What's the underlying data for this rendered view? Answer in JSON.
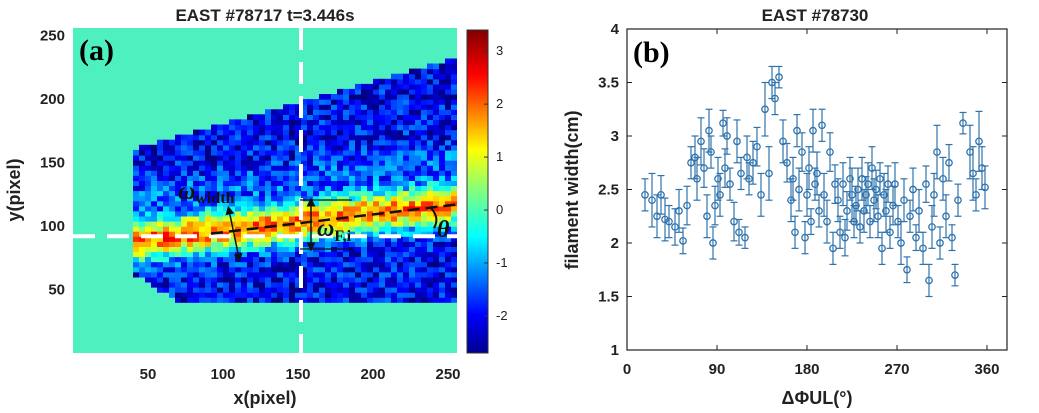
{
  "chart_data": [
    {
      "type": "heatmap",
      "title": "EAST #78717 t=3.446s",
      "panel_label": "(a)",
      "xlabel": "x(pixel)",
      "ylabel": "y(pixel)",
      "xlim": [
        0,
        256
      ],
      "ylim": [
        0,
        256
      ],
      "x_ticks": [
        "50",
        "100",
        "150",
        "200",
        "250"
      ],
      "y_ticks": [
        "50",
        "100",
        "150",
        "200",
        "250"
      ],
      "colorbar": {
        "range": [
          -2.7,
          3.4
        ],
        "ticks": [
          "3",
          "2",
          "1",
          "0",
          "-1",
          "-2"
        ],
        "colormap": "jet"
      },
      "background_color": "#4ef0c0",
      "crosshair": {
        "x": 152,
        "y": 92
      },
      "filament_tilt_line": {
        "x0": 92,
        "y0": 94,
        "x1": 256,
        "y1": 117
      },
      "annotations": {
        "width_symbol": "ω",
        "width_subscript": "width",
        "fi_symbol": "ω",
        "fi_subscript": "F,i",
        "angle_symbol": "θ"
      }
    },
    {
      "type": "scatter",
      "title": "EAST #78730",
      "panel_label": "(b)",
      "xlabel": "ΔΦUL(°)",
      "ylabel": "filament width(cm)",
      "xlim": [
        0,
        380
      ],
      "ylim": [
        1,
        4
      ],
      "x_ticks": [
        "0",
        "90",
        "180",
        "270",
        "360"
      ],
      "y_ticks": [
        "1",
        "1.5",
        "2",
        "2.5",
        "3",
        "3.5",
        "4"
      ],
      "marker": "open circle with error bars",
      "color": "#2f73ad",
      "points": [
        [
          18,
          2.45,
          0.15
        ],
        [
          25,
          2.4,
          0.25
        ],
        [
          30,
          2.25,
          0.2
        ],
        [
          34,
          2.45,
          0.18
        ],
        [
          38,
          2.22,
          0.2
        ],
        [
          42,
          2.2,
          0.15
        ],
        [
          48,
          2.15,
          0.17
        ],
        [
          52,
          2.3,
          0.2
        ],
        [
          56,
          2.02,
          0.12
        ],
        [
          60,
          2.35,
          0.18
        ],
        [
          64,
          2.75,
          0.15
        ],
        [
          68,
          2.8,
          0.2
        ],
        [
          70,
          2.6,
          0.2
        ],
        [
          74,
          2.95,
          0.22
        ],
        [
          77,
          2.7,
          0.18
        ],
        [
          80,
          2.25,
          0.2
        ],
        [
          82,
          3.05,
          0.2
        ],
        [
          84,
          2.85,
          0.15
        ],
        [
          86,
          2.0,
          0.15
        ],
        [
          88,
          2.35,
          0.18
        ],
        [
          91,
          2.6,
          0.2
        ],
        [
          93,
          2.45,
          0.2
        ],
        [
          96,
          3.12,
          0.12
        ],
        [
          98,
          2.7,
          0.18
        ],
        [
          100,
          3.0,
          0.17
        ],
        [
          103,
          2.55,
          0.15
        ],
        [
          107,
          2.2,
          0.18
        ],
        [
          110,
          2.95,
          0.2
        ],
        [
          112,
          2.1,
          0.12
        ],
        [
          114,
          2.65,
          0.15
        ],
        [
          118,
          2.05,
          0.1
        ],
        [
          120,
          2.8,
          0.2
        ],
        [
          122,
          2.6,
          0.15
        ],
        [
          126,
          2.75,
          0.2
        ],
        [
          130,
          2.9,
          0.18
        ],
        [
          134,
          2.45,
          0.2
        ],
        [
          138,
          3.25,
          0.25
        ],
        [
          142,
          2.65,
          0.25
        ],
        [
          145,
          3.5,
          0.15
        ],
        [
          148,
          3.35,
          0.15
        ],
        [
          152,
          3.55,
          0.1
        ],
        [
          156,
          2.95,
          0.2
        ],
        [
          160,
          2.75,
          0.18
        ],
        [
          164,
          2.4,
          0.2
        ],
        [
          166,
          2.6,
          0.2
        ],
        [
          168,
          2.1,
          0.15
        ],
        [
          170,
          3.05,
          0.15
        ],
        [
          172,
          2.5,
          0.2
        ],
        [
          175,
          2.85,
          0.18
        ],
        [
          178,
          2.05,
          0.15
        ],
        [
          180,
          2.45,
          0.2
        ],
        [
          182,
          2.7,
          0.2
        ],
        [
          184,
          2.2,
          0.12
        ],
        [
          186,
          3.05,
          0.2
        ],
        [
          188,
          2.55,
          0.15
        ],
        [
          190,
          2.65,
          0.2
        ],
        [
          192,
          2.3,
          0.15
        ],
        [
          195,
          3.1,
          0.15
        ],
        [
          197,
          2.45,
          0.2
        ],
        [
          200,
          2.2,
          0.2
        ],
        [
          203,
          2.85,
          0.18
        ],
        [
          206,
          1.95,
          0.15
        ],
        [
          208,
          2.55,
          0.18
        ],
        [
          211,
          2.4,
          0.2
        ],
        [
          213,
          2.1,
          0.15
        ],
        [
          216,
          2.55,
          0.2
        ],
        [
          218,
          2.05,
          0.17
        ],
        [
          220,
          2.3,
          0.18
        ],
        [
          223,
          2.6,
          0.2
        ],
        [
          225,
          2.45,
          0.25
        ],
        [
          227,
          2.2,
          0.15
        ],
        [
          229,
          2.35,
          0.18
        ],
        [
          231,
          2.5,
          0.2
        ],
        [
          233,
          2.15,
          0.15
        ],
        [
          235,
          2.6,
          0.2
        ],
        [
          237,
          2.3,
          0.2
        ],
        [
          239,
          2.45,
          0.17
        ],
        [
          241,
          2.55,
          0.2
        ],
        [
          243,
          2.2,
          0.15
        ],
        [
          245,
          2.7,
          0.2
        ],
        [
          247,
          2.4,
          0.2
        ],
        [
          249,
          2.5,
          0.18
        ],
        [
          251,
          2.25,
          0.2
        ],
        [
          253,
          2.6,
          0.15
        ],
        [
          255,
          1.95,
          0.15
        ],
        [
          257,
          2.45,
          0.2
        ],
        [
          259,
          2.3,
          0.2
        ],
        [
          261,
          2.55,
          0.17
        ],
        [
          263,
          2.1,
          0.15
        ],
        [
          266,
          2.35,
          0.18
        ],
        [
          268,
          2.55,
          0.2
        ],
        [
          271,
          2.2,
          0.15
        ],
        [
          274,
          2.0,
          0.2
        ],
        [
          277,
          2.4,
          0.2
        ],
        [
          280,
          1.75,
          0.12
        ],
        [
          283,
          2.25,
          0.15
        ],
        [
          286,
          2.5,
          0.2
        ],
        [
          289,
          2.05,
          0.12
        ],
        [
          292,
          2.3,
          0.2
        ],
        [
          296,
          1.95,
          0.15
        ],
        [
          299,
          2.55,
          0.17
        ],
        [
          302,
          1.65,
          0.15
        ],
        [
          305,
          2.15,
          0.2
        ],
        [
          307,
          2.45,
          0.2
        ],
        [
          310,
          2.85,
          0.25
        ],
        [
          313,
          2.0,
          0.15
        ],
        [
          316,
          2.6,
          0.2
        ],
        [
          319,
          2.25,
          0.2
        ],
        [
          322,
          2.75,
          0.17
        ],
        [
          325,
          2.05,
          0.12
        ],
        [
          328,
          1.7,
          0.1
        ],
        [
          331,
          2.4,
          0.15
        ],
        [
          336,
          3.12,
          0.1
        ],
        [
          343,
          2.85,
          0.25
        ],
        [
          346,
          2.65,
          0.25
        ],
        [
          349,
          2.45,
          0.15
        ],
        [
          352,
          2.95,
          0.28
        ],
        [
          355,
          2.7,
          0.2
        ],
        [
          358,
          2.52,
          0.2
        ]
      ]
    }
  ]
}
